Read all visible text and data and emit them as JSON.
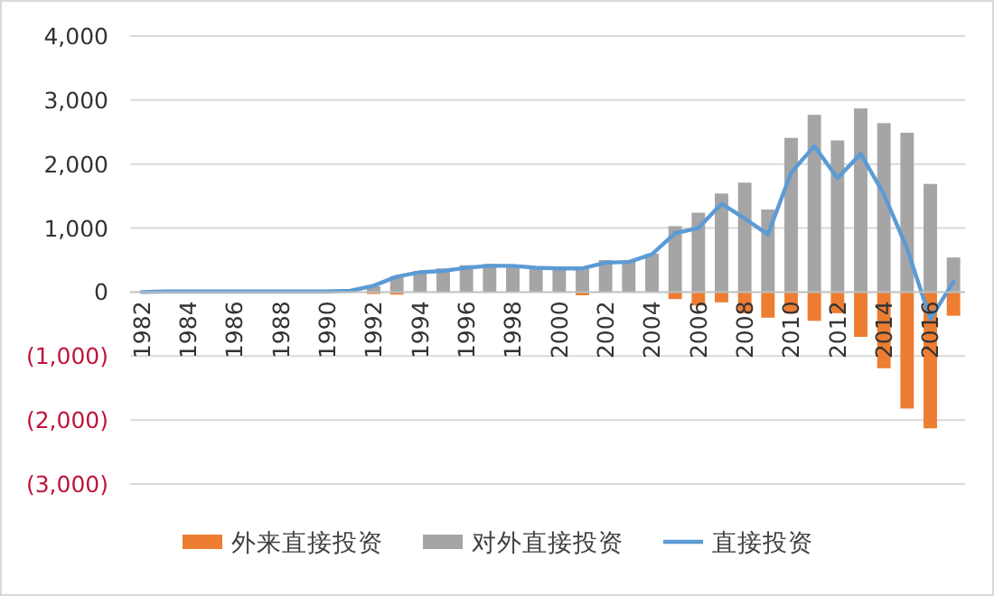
{
  "chart_data": {
    "type": "bar",
    "categories": [
      "1982",
      null,
      "1984",
      null,
      "1986",
      null,
      "1988",
      null,
      "1990",
      null,
      "1992",
      null,
      "1994",
      null,
      "1996",
      null,
      "1998",
      null,
      "2000",
      null,
      "2002",
      null,
      "2004",
      null,
      "2006",
      null,
      "2008",
      null,
      "2010",
      null,
      "2012",
      null,
      "2014",
      null,
      "2016",
      null
    ],
    "series": [
      {
        "name": "外来直接投资",
        "color": "#ed7d31",
        "values": [
          0,
          0,
          0,
          0,
          0,
          0,
          0,
          0,
          0,
          0,
          -30,
          -40,
          0,
          0,
          0,
          0,
          0,
          0,
          0,
          -50,
          0,
          0,
          0,
          -110,
          -210,
          -160,
          -330,
          -400,
          -330,
          -450,
          -330,
          -700,
          -1190,
          -1820,
          -2130,
          -370
        ]
      },
      {
        "name": "对外直接投资",
        "color": "#a5a5a5",
        "values": [
          0,
          0,
          0,
          0,
          0,
          0,
          0,
          0,
          0,
          10,
          90,
          250,
          330,
          370,
          420,
          440,
          420,
          380,
          370,
          370,
          500,
          500,
          600,
          1030,
          1240,
          1540,
          1710,
          1290,
          2410,
          2770,
          2370,
          2870,
          2640,
          2490,
          1690,
          540
        ]
      },
      {
        "name": "直接投资",
        "type": "line",
        "color": "#5b9bd5",
        "values": [
          0,
          10,
          10,
          10,
          10,
          10,
          10,
          10,
          10,
          20,
          100,
          240,
          310,
          330,
          380,
          410,
          410,
          380,
          370,
          370,
          460,
          470,
          590,
          920,
          1000,
          1380,
          1150,
          900,
          1870,
          2280,
          1780,
          2160,
          1530,
          680,
          -420,
          160
        ]
      }
    ],
    "ylim": [
      -3000,
      4000
    ],
    "yticks": [
      {
        "value": -3000,
        "label": "(3,000)"
      },
      {
        "value": -2000,
        "label": "(2,000)"
      },
      {
        "value": -1000,
        "label": "(1,000)"
      },
      0,
      {
        "value": 1000,
        "label": "1,000"
      },
      {
        "value": 2000,
        "label": "2,000"
      },
      {
        "value": 3000,
        "label": "3,000"
      },
      {
        "value": 4000,
        "label": "4,000"
      }
    ],
    "grid": "y",
    "legend": "bottom"
  }
}
